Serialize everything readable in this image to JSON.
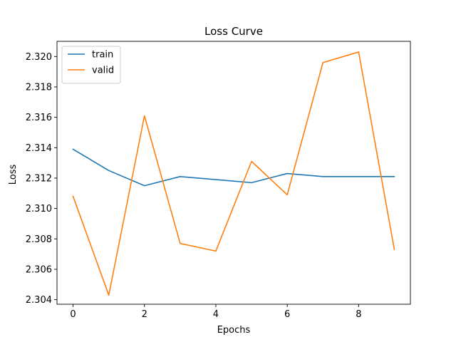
{
  "chart_data": {
    "type": "line",
    "title": "Loss Curve",
    "xlabel": "Epochs",
    "ylabel": "Loss",
    "x": [
      0,
      1,
      2,
      3,
      4,
      5,
      6,
      7,
      8,
      9
    ],
    "xlim": [
      -0.45,
      9.45
    ],
    "ylim": [
      2.3037,
      2.321
    ],
    "xticks": [
      0,
      2,
      4,
      6,
      8
    ],
    "yticks": [
      2.304,
      2.306,
      2.308,
      2.31,
      2.312,
      2.314,
      2.316,
      2.318,
      2.32
    ],
    "ytick_labels": [
      "2.304",
      "2.306",
      "2.308",
      "2.310",
      "2.312",
      "2.314",
      "2.316",
      "2.318",
      "2.320"
    ],
    "grid": false,
    "legend_position": "top-left",
    "series": [
      {
        "name": "train",
        "color": "#1f77b4",
        "values": [
          2.3139,
          2.3125,
          2.3115,
          2.3121,
          2.3119,
          2.3117,
          2.3123,
          2.3121,
          2.3121,
          2.3121
        ]
      },
      {
        "name": "valid",
        "color": "#ff7f0e",
        "values": [
          2.3108,
          2.3043,
          2.3161,
          2.3077,
          2.3072,
          2.3131,
          2.3109,
          2.3196,
          2.3203,
          2.3073
        ]
      }
    ]
  }
}
